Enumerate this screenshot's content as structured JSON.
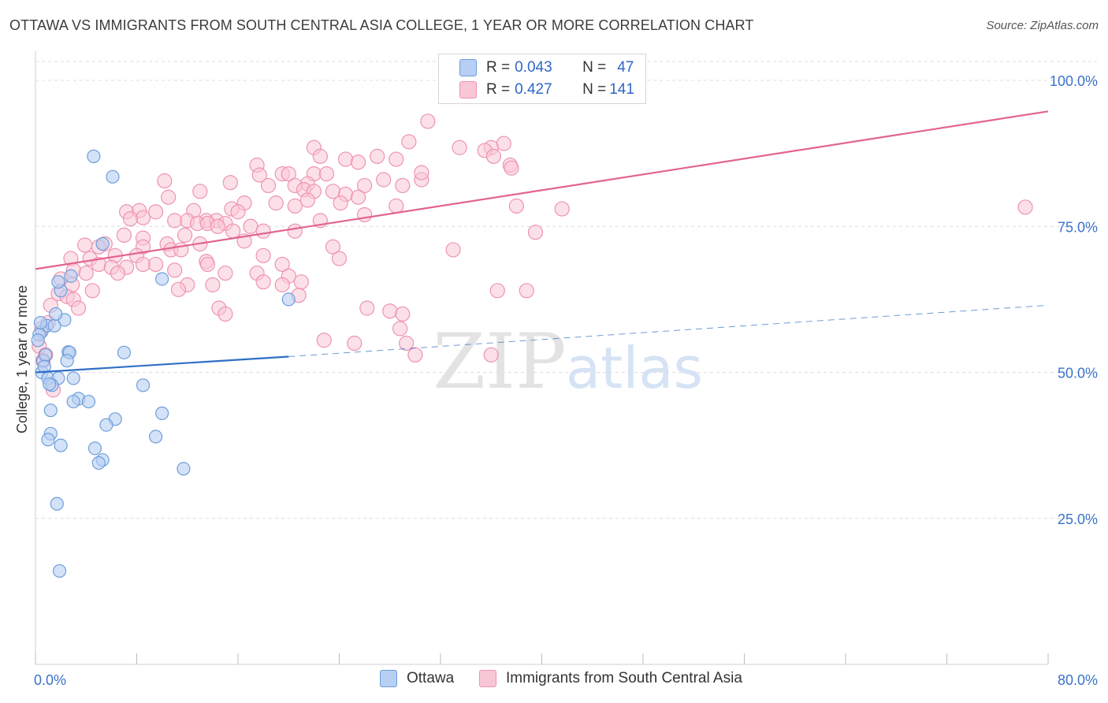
{
  "title": "OTTAWA VS IMMIGRANTS FROM SOUTH CENTRAL ASIA COLLEGE, 1 YEAR OR MORE CORRELATION CHART",
  "source": "Source: ZipAtlas.com",
  "watermark": {
    "zip": "ZIP",
    "atlas": "atlas"
  },
  "legend": {
    "rows": [
      {
        "r_label": "R = ",
        "r_value": "0.043",
        "n_label": "N = ",
        "n_value": "47"
      },
      {
        "r_label": "R = ",
        "r_value": "0.427",
        "n_label": "N = ",
        "n_value": "141"
      }
    ]
  },
  "bottom_legend": {
    "series_a": "Ottawa",
    "series_b": "Immigrants from South Central Asia"
  },
  "colors": {
    "blue_fill": "#b7cff2",
    "blue_stroke": "#6e9edc",
    "blue_line": "#2f6fc6",
    "pink_fill": "#f9c6d6",
    "pink_stroke": "#ee93b1",
    "pink_line": "#e2648e",
    "tick_label": "#3b73c9",
    "grid": "#dcdcdc"
  },
  "chart_data": {
    "type": "scatter",
    "title": "OTTAWA VS IMMIGRANTS FROM SOUTH CENTRAL ASIA COLLEGE, 1 YEAR OR MORE CORRELATION CHART",
    "xlabel": "",
    "ylabel": "College, 1 year or more",
    "xlim": [
      0,
      80
    ],
    "ylim": [
      0,
      105
    ],
    "x_tick_labels": [
      "0.0%",
      "80.0%"
    ],
    "y_ticks": [
      25,
      50,
      75,
      100
    ],
    "y_tick_labels": [
      "25.0%",
      "50.0%",
      "75.0%",
      "100.0%"
    ],
    "x_minor_ticks": [
      0,
      8,
      16,
      24,
      32,
      40,
      48,
      56,
      64,
      72,
      80
    ],
    "grid": true,
    "series": [
      {
        "name": "Ottawa",
        "R": 0.043,
        "N": 47,
        "trend": {
          "x0": 0,
          "y0": 50.0,
          "x1": 20,
          "y1": 52.7,
          "dash_to_x": 80,
          "dash_to_y": 61.5
        },
        "points": [
          [
            4.6,
            87.0
          ],
          [
            6.1,
            83.5
          ],
          [
            5.3,
            72.0
          ],
          [
            0.5,
            57.0
          ],
          [
            0.9,
            58.0
          ],
          [
            1.5,
            58.0
          ],
          [
            0.3,
            56.5
          ],
          [
            0.6,
            52.0
          ],
          [
            0.8,
            53.0
          ],
          [
            2.3,
            59.0
          ],
          [
            2.0,
            64.0
          ],
          [
            2.8,
            66.5
          ],
          [
            1.8,
            65.5
          ],
          [
            2.6,
            53.5
          ],
          [
            2.7,
            53.4
          ],
          [
            7.0,
            53.4
          ],
          [
            2.5,
            52.0
          ],
          [
            0.5,
            50.0
          ],
          [
            1.0,
            49.0
          ],
          [
            1.8,
            49.0
          ],
          [
            1.3,
            47.8
          ],
          [
            3.0,
            49.0
          ],
          [
            8.5,
            47.8
          ],
          [
            3.4,
            45.5
          ],
          [
            4.2,
            45.0
          ],
          [
            3.0,
            45.0
          ],
          [
            1.2,
            43.5
          ],
          [
            10.0,
            43.0
          ],
          [
            6.3,
            42.0
          ],
          [
            5.6,
            41.0
          ],
          [
            1.2,
            39.5
          ],
          [
            1.0,
            38.5
          ],
          [
            2.0,
            37.5
          ],
          [
            9.5,
            39.0
          ],
          [
            4.7,
            37.0
          ],
          [
            5.3,
            35.0
          ],
          [
            5.0,
            34.5
          ],
          [
            11.7,
            33.5
          ],
          [
            1.7,
            27.5
          ],
          [
            1.9,
            16.0
          ],
          [
            10.0,
            66.0
          ],
          [
            20.0,
            62.5
          ],
          [
            0.4,
            58.5
          ],
          [
            0.2,
            55.5
          ],
          [
            0.7,
            51.0
          ],
          [
            1.1,
            48.0
          ],
          [
            1.6,
            60.0
          ]
        ]
      },
      {
        "name": "Immigrants from South Central Asia",
        "R": 0.427,
        "N": 141,
        "trend": {
          "x0": 0,
          "y0": 67.7,
          "x1": 80,
          "y1": 94.7
        },
        "points": [
          [
            31.0,
            93.0
          ],
          [
            29.5,
            89.5
          ],
          [
            37.0,
            89.2
          ],
          [
            36.0,
            88.5
          ],
          [
            33.5,
            88.5
          ],
          [
            35.5,
            88.0
          ],
          [
            22.0,
            88.5
          ],
          [
            22.5,
            87.0
          ],
          [
            27.0,
            87.0
          ],
          [
            24.5,
            86.5
          ],
          [
            25.5,
            86.0
          ],
          [
            28.5,
            86.5
          ],
          [
            37.5,
            85.5
          ],
          [
            17.5,
            85.5
          ],
          [
            19.5,
            84.0
          ],
          [
            17.7,
            83.8
          ],
          [
            37.6,
            85.0
          ],
          [
            20.0,
            84.0
          ],
          [
            22.0,
            84.0
          ],
          [
            23.0,
            84.0
          ],
          [
            27.5,
            83.0
          ],
          [
            30.5,
            83.0
          ],
          [
            10.2,
            82.8
          ],
          [
            15.4,
            82.5
          ],
          [
            18.4,
            82.0
          ],
          [
            21.5,
            82.3
          ],
          [
            26.0,
            82.0
          ],
          [
            29.0,
            82.0
          ],
          [
            13.0,
            81.0
          ],
          [
            20.5,
            82.0
          ],
          [
            21.2,
            81.3
          ],
          [
            22.0,
            81.0
          ],
          [
            23.5,
            81.0
          ],
          [
            24.5,
            80.5
          ],
          [
            25.5,
            80.0
          ],
          [
            10.5,
            80.0
          ],
          [
            16.5,
            79.0
          ],
          [
            19.0,
            79.0
          ],
          [
            21.5,
            79.5
          ],
          [
            20.5,
            78.5
          ],
          [
            28.5,
            78.5
          ],
          [
            38.0,
            78.5
          ],
          [
            41.6,
            78.0
          ],
          [
            78.2,
            78.3
          ],
          [
            7.2,
            77.5
          ],
          [
            8.2,
            77.7
          ],
          [
            9.5,
            77.5
          ],
          [
            12.5,
            77.7
          ],
          [
            15.5,
            78.0
          ],
          [
            16.0,
            77.5
          ],
          [
            26.0,
            77.0
          ],
          [
            8.5,
            76.5
          ],
          [
            7.5,
            76.3
          ],
          [
            11.0,
            76.0
          ],
          [
            12.0,
            76.0
          ],
          [
            13.5,
            76.0
          ],
          [
            14.3,
            76.0
          ],
          [
            15.0,
            75.5
          ],
          [
            17.0,
            75.0
          ],
          [
            12.8,
            75.5
          ],
          [
            13.6,
            75.5
          ],
          [
            14.4,
            75.0
          ],
          [
            15.6,
            74.2
          ],
          [
            18.0,
            74.2
          ],
          [
            20.5,
            74.2
          ],
          [
            22.5,
            76.0
          ],
          [
            39.5,
            74.0
          ],
          [
            7.0,
            73.5
          ],
          [
            8.5,
            73.0
          ],
          [
            11.8,
            73.5
          ],
          [
            10.4,
            72.0
          ],
          [
            13.0,
            72.0
          ],
          [
            16.5,
            72.5
          ],
          [
            5.5,
            72.0
          ],
          [
            8.5,
            71.5
          ],
          [
            3.9,
            71.8
          ],
          [
            5.0,
            71.5
          ],
          [
            10.7,
            71.0
          ],
          [
            11.5,
            71.0
          ],
          [
            23.5,
            71.5
          ],
          [
            33.0,
            71.0
          ],
          [
            2.8,
            69.5
          ],
          [
            4.3,
            69.5
          ],
          [
            6.3,
            70.0
          ],
          [
            8.0,
            70.0
          ],
          [
            13.5,
            69.0
          ],
          [
            18.0,
            70.0
          ],
          [
            19.5,
            68.5
          ],
          [
            24.0,
            69.5
          ],
          [
            5.0,
            68.5
          ],
          [
            6.0,
            68.0
          ],
          [
            7.2,
            68.0
          ],
          [
            8.5,
            68.5
          ],
          [
            9.5,
            68.5
          ],
          [
            11.0,
            67.5
          ],
          [
            3.0,
            67.5
          ],
          [
            4.0,
            67.0
          ],
          [
            6.5,
            67.0
          ],
          [
            15.0,
            67.0
          ],
          [
            17.5,
            67.0
          ],
          [
            20.0,
            66.5
          ],
          [
            2.0,
            66.0
          ],
          [
            2.9,
            65.0
          ],
          [
            12.0,
            65.0
          ],
          [
            14.0,
            65.0
          ],
          [
            18.0,
            65.5
          ],
          [
            19.5,
            65.0
          ],
          [
            21.0,
            65.5
          ],
          [
            4.5,
            64.0
          ],
          [
            11.3,
            64.2
          ],
          [
            36.5,
            64.0
          ],
          [
            38.8,
            64.0
          ],
          [
            1.8,
            63.5
          ],
          [
            2.5,
            63.0
          ],
          [
            3.0,
            62.5
          ],
          [
            1.2,
            61.5
          ],
          [
            3.4,
            61.0
          ],
          [
            14.5,
            61.0
          ],
          [
            15.0,
            60.0
          ],
          [
            28.0,
            60.5
          ],
          [
            29.0,
            60.0
          ],
          [
            1.0,
            58.5
          ],
          [
            0.5,
            57.5
          ],
          [
            28.8,
            57.5
          ],
          [
            22.8,
            55.5
          ],
          [
            25.2,
            55.0
          ],
          [
            29.3,
            55.0
          ],
          [
            30.0,
            53.0
          ],
          [
            36.0,
            53.0
          ],
          [
            0.3,
            54.5
          ],
          [
            0.8,
            53.0
          ],
          [
            26.2,
            61.0
          ],
          [
            0.6,
            52.0
          ],
          [
            20.8,
            63.2
          ],
          [
            30.5,
            84.2
          ],
          [
            36.2,
            87.0
          ],
          [
            13.6,
            68.5
          ],
          [
            24.1,
            79.0
          ],
          [
            1.4,
            47.0
          ]
        ]
      }
    ]
  }
}
